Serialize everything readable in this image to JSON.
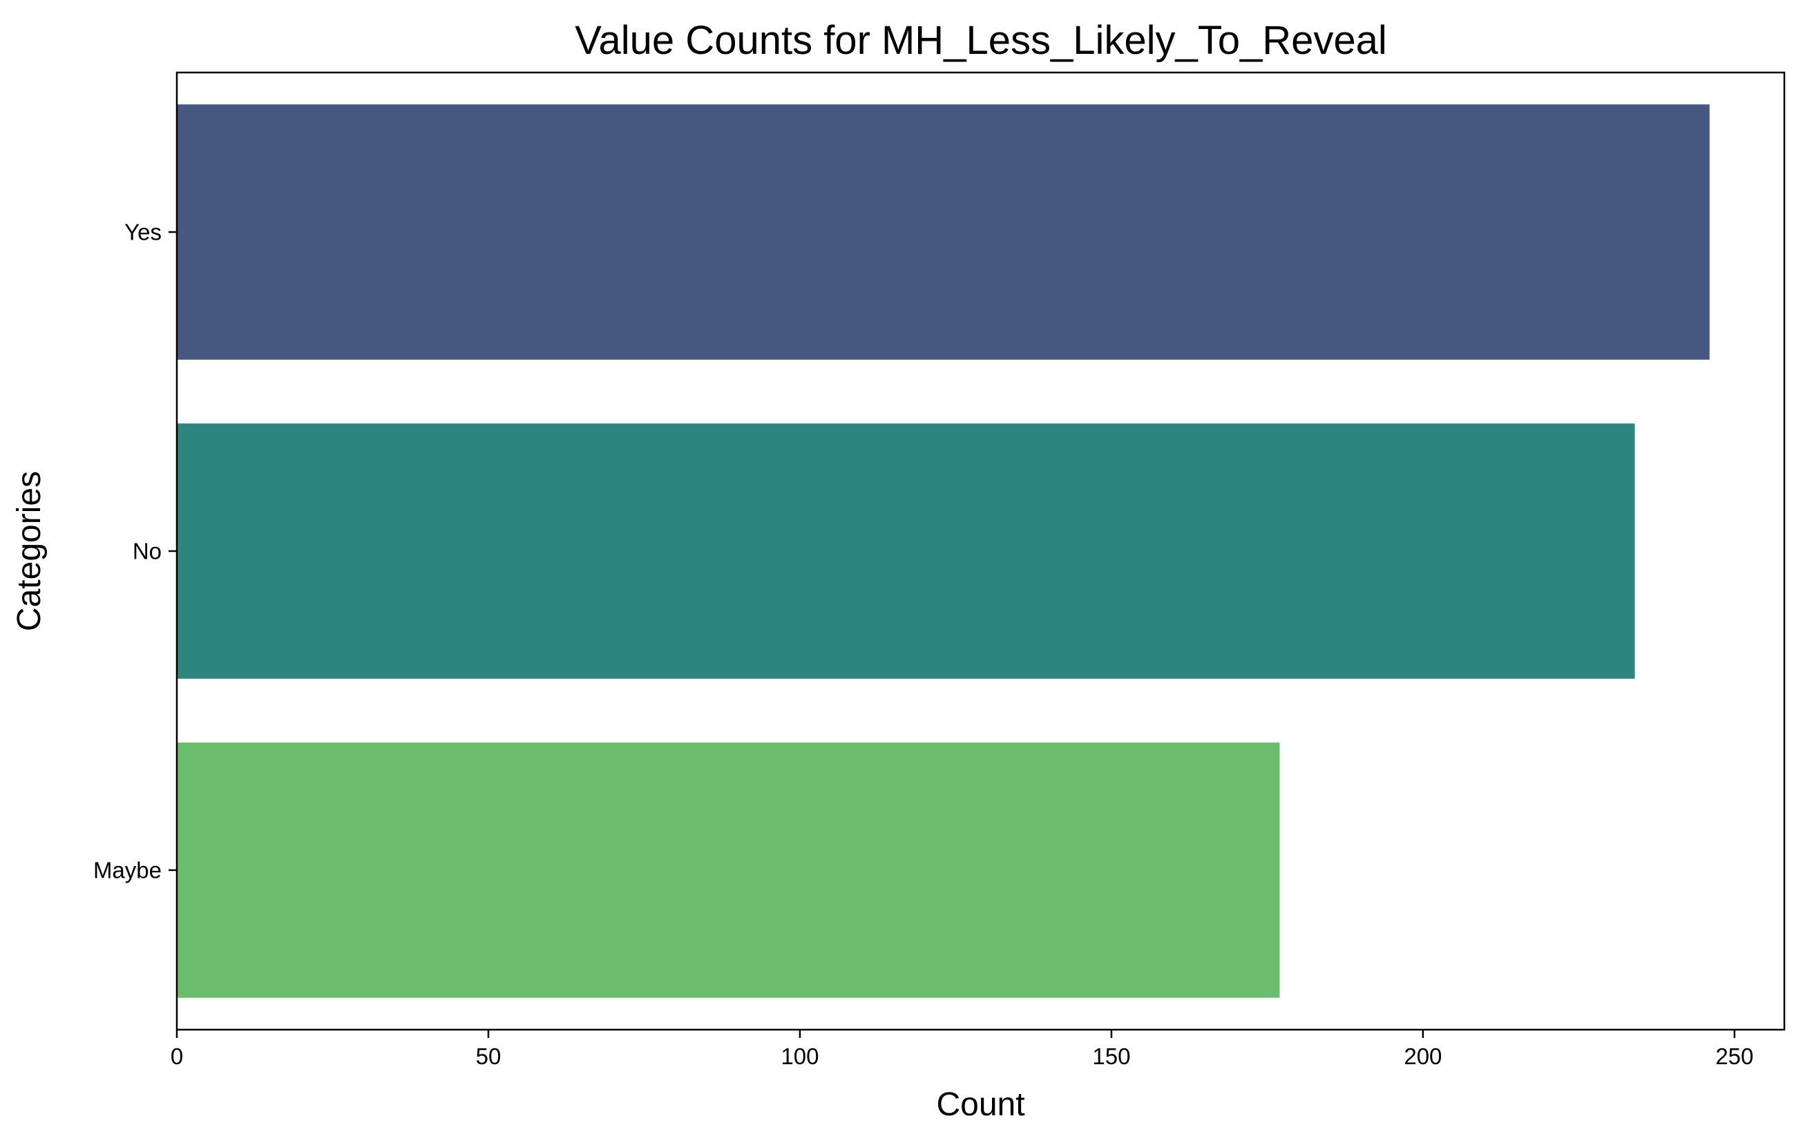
{
  "chart_data": {
    "type": "bar",
    "orientation": "horizontal",
    "title": "Value Counts for MH_Less_Likely_To_Reveal",
    "xlabel": "Count",
    "ylabel": "Categories",
    "categories": [
      "Yes",
      "No",
      "Maybe"
    ],
    "values": [
      246,
      234,
      177
    ],
    "colors": [
      "#46587f",
      "#2e847e",
      "#6bbd6e"
    ],
    "xlim": [
      0,
      258
    ],
    "xticks": [
      0,
      50,
      100,
      150,
      200,
      250
    ],
    "grid": false,
    "legend": "none"
  }
}
